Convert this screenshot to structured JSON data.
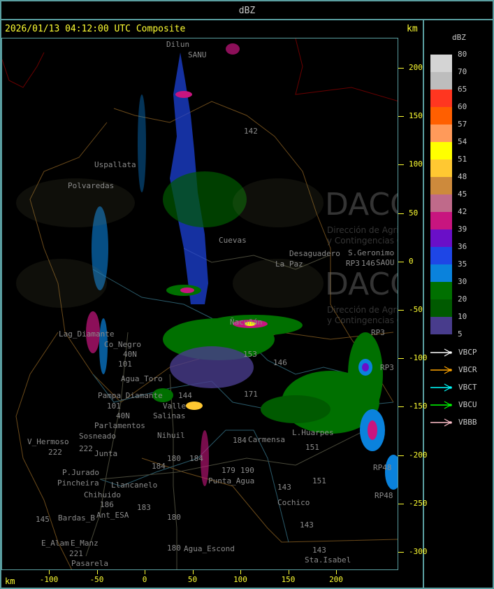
{
  "header": {
    "title": "dBZ"
  },
  "main": {
    "title": "2026/01/13 04:12:00 UTC Composite",
    "km_label_top": "km",
    "km_label_bottom": "km",
    "y_ticks": [
      "200",
      "150",
      "100",
      "50",
      "0",
      "-50",
      "-100",
      "-150",
      "-200",
      "-250",
      "-300"
    ],
    "x_ticks": [
      "-100",
      "-50",
      "0",
      "50",
      "100",
      "150",
      "200"
    ]
  },
  "watermark": {
    "logo": "DACC",
    "line1": "Dirección de Agricultura",
    "line2": "y Contingencias Climáticas"
  },
  "map": {
    "places": [
      "Dilun",
      "SANU",
      "Uspallata",
      "Polvaredas",
      "142",
      "Cuevas",
      "S.Geronimo",
      "SAOU",
      "Desaguadero",
      "La Paz",
      "146",
      "RP3",
      "RP3",
      "Ñacuñán",
      "Lag_Diamante",
      "Co_Negro",
      "40N",
      "101",
      "Agua_Toro",
      "Pampa_Diamante",
      "101",
      "40N",
      "Parlamentos",
      "Sosneado",
      "V_Hermoso",
      "222",
      "222",
      "Junta",
      "P.Jurado",
      "Pincheira",
      "Llancanelo",
      "Chihuido",
      "186",
      "Ant_ESA",
      "183",
      "Bardas_B",
      "145",
      "E_Manz",
      "221",
      "E_Alam",
      "Pasarela",
      "180",
      "180",
      "Agua_Escond",
      "184",
      "180",
      "184",
      "Nihuil",
      "Salinas",
      "Valle",
      "144",
      "Punta_Agua",
      "179",
      "190",
      "184",
      "Carmensa",
      "L.Huarpes",
      "151",
      "151",
      "143",
      "Cochico",
      "143",
      "143",
      "Sta.Isabel",
      "RP48",
      "RP48",
      "RP3",
      "153",
      "146",
      "171"
    ]
  },
  "legend": {
    "title": "dBZ",
    "labels": [
      "80",
      "70",
      "65",
      "60",
      "57",
      "54",
      "51",
      "48",
      "45",
      "42",
      "39",
      "36",
      "35",
      "30",
      "20",
      "10",
      "5"
    ],
    "colors": [
      "#d4d4d4",
      "#bdbdbd",
      "#ff3620",
      "#ff5f00",
      "#ff9a5a",
      "#ffff00",
      "#ffc832",
      "#cd8a3c",
      "#bf6a8a",
      "#c8157f",
      "#6a0fc8",
      "#1e46e6",
      "#0a82dc",
      "#007000",
      "#005a00",
      "#483c8c"
    ],
    "radars": [
      {
        "name": "VBCP",
        "color": "#ffffff"
      },
      {
        "name": "VBCR",
        "color": "#ffa500"
      },
      {
        "name": "VBCT",
        "color": "#00ffff"
      },
      {
        "name": "VBCU",
        "color": "#00ff00"
      },
      {
        "name": "VBBB",
        "color": "#ffc0cb"
      }
    ]
  }
}
